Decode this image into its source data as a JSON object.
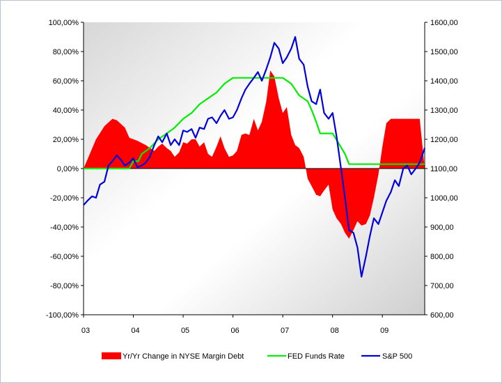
{
  "chart_data": {
    "type": "area",
    "title": "",
    "xlabel": "",
    "ylabel": "",
    "x_categories": [
      "03",
      "04",
      "05",
      "06",
      "07",
      "08",
      "09"
    ],
    "x_range": [
      2003.0,
      2009.85
    ],
    "y_left": {
      "range": [
        -1.0,
        1.0
      ],
      "ticks": [
        1.0,
        0.8,
        0.6,
        0.4,
        0.2,
        0.0,
        -0.2,
        -0.4,
        -0.6,
        -0.8,
        -1.0
      ],
      "tick_labels": [
        "100,00%",
        "80,00%",
        "60,00%",
        "40,00%",
        "20,00%",
        "0,00%",
        "-20,00%",
        "-40,00%",
        "-60,00%",
        "-80,00%",
        "-100,00%"
      ]
    },
    "y_right": {
      "range": [
        600,
        1600
      ],
      "ticks": [
        1600,
        1500,
        1400,
        1300,
        1200,
        1100,
        1000,
        900,
        800,
        700,
        600
      ],
      "tick_labels": [
        "1600,00",
        "1500,00",
        "1400,00",
        "1300,00",
        "1200,00",
        "1100,00",
        "1000,00",
        "900,00",
        "800,00",
        "700,00",
        "600,00"
      ]
    },
    "grid": false,
    "legend_position": "bottom",
    "series": [
      {
        "name": "Yr/Yr Change in NYSE Margin Debt",
        "type": "area",
        "axis": "left",
        "color": "#ff0000",
        "x": [
          2003.0,
          2003.1,
          2003.25,
          2003.42,
          2003.58,
          2003.67,
          2003.83,
          2003.92,
          2004.08,
          2004.25,
          2004.42,
          2004.5,
          2004.58,
          2004.67,
          2004.75,
          2004.83,
          2004.92,
          2005.0,
          2005.08,
          2005.17,
          2005.25,
          2005.33,
          2005.42,
          2005.5,
          2005.58,
          2005.67,
          2005.75,
          2005.83,
          2005.92,
          2006.0,
          2006.08,
          2006.17,
          2006.25,
          2006.33,
          2006.42,
          2006.5,
          2006.58,
          2006.67,
          2006.75,
          2006.83,
          2006.92,
          2007.0,
          2007.08,
          2007.17,
          2007.25,
          2007.33,
          2007.42,
          2007.5,
          2007.58,
          2007.67,
          2007.75,
          2007.83,
          2007.92,
          2008.0,
          2008.08,
          2008.17,
          2008.25,
          2008.33,
          2008.42,
          2008.5,
          2008.58,
          2008.67,
          2008.75,
          2008.83,
          2008.92,
          2009.0,
          2009.08,
          2009.17,
          2009.25,
          2009.33,
          2009.42,
          2009.5,
          2009.58,
          2009.67,
          2009.75,
          2009.85
        ],
        "values": [
          0.0,
          0.08,
          0.2,
          0.29,
          0.34,
          0.33,
          0.28,
          0.21,
          0.19,
          0.16,
          0.12,
          0.15,
          0.17,
          0.14,
          0.12,
          0.08,
          0.11,
          0.18,
          0.17,
          0.2,
          0.2,
          0.15,
          0.18,
          0.1,
          0.08,
          0.15,
          0.22,
          0.14,
          0.08,
          0.09,
          0.12,
          0.23,
          0.24,
          0.23,
          0.34,
          0.26,
          0.32,
          0.46,
          0.67,
          0.63,
          0.48,
          0.38,
          0.42,
          0.23,
          0.16,
          0.14,
          0.08,
          -0.07,
          -0.12,
          -0.18,
          -0.19,
          -0.15,
          -0.11,
          -0.28,
          -0.34,
          -0.38,
          -0.44,
          -0.48,
          -0.42,
          -0.36,
          -0.39,
          -0.38,
          -0.32,
          -0.2,
          -0.04,
          0.15,
          0.31,
          0.34,
          0.34,
          0.34,
          0.34,
          0.34,
          0.34,
          0.34,
          0.34,
          0.0
        ]
      },
      {
        "name": "FED Funds Rate",
        "type": "line",
        "axis": "right",
        "color": "#00ee00",
        "x": [
          2003.0,
          2003.92,
          2004.0,
          2004.1,
          2004.17,
          2004.33,
          2004.5,
          2004.67,
          2004.83,
          2005.0,
          2005.17,
          2005.33,
          2005.5,
          2005.67,
          2005.83,
          2006.0,
          2006.5,
          2007.0,
          2007.17,
          2007.33,
          2007.5,
          2007.58,
          2007.67,
          2007.75,
          2008.0,
          2008.25,
          2008.33,
          2008.5,
          2009.85
        ],
        "values": [
          1100,
          1100,
          1125,
          1125,
          1150,
          1170,
          1200,
          1220,
          1240,
          1270,
          1290,
          1320,
          1340,
          1360,
          1390,
          1410,
          1410,
          1410,
          1390,
          1350,
          1330,
          1300,
          1260,
          1220,
          1220,
          1150,
          1115,
          1115,
          1115
        ]
      },
      {
        "name": "S&P 500",
        "type": "line",
        "axis": "right",
        "color": "#0000dd",
        "x": [
          2003.0,
          2003.08,
          2003.17,
          2003.25,
          2003.33,
          2003.42,
          2003.5,
          2003.58,
          2003.67,
          2003.75,
          2003.83,
          2003.92,
          2004.0,
          2004.08,
          2004.17,
          2004.25,
          2004.33,
          2004.42,
          2004.5,
          2004.58,
          2004.67,
          2004.75,
          2004.83,
          2004.92,
          2005.0,
          2005.08,
          2005.17,
          2005.25,
          2005.33,
          2005.42,
          2005.5,
          2005.58,
          2005.67,
          2005.75,
          2005.83,
          2005.92,
          2006.0,
          2006.08,
          2006.17,
          2006.25,
          2006.33,
          2006.42,
          2006.5,
          2006.58,
          2006.67,
          2006.75,
          2006.83,
          2006.92,
          2007.0,
          2007.08,
          2007.17,
          2007.25,
          2007.33,
          2007.42,
          2007.5,
          2007.58,
          2007.67,
          2007.75,
          2007.83,
          2007.92,
          2008.0,
          2008.08,
          2008.17,
          2008.25,
          2008.33,
          2008.42,
          2008.5,
          2008.58,
          2008.67,
          2008.75,
          2008.83,
          2008.92,
          2009.0,
          2009.08,
          2009.17,
          2009.25,
          2009.33,
          2009.42,
          2009.5,
          2009.58,
          2009.67,
          2009.75,
          2009.85
        ],
        "values": [
          975,
          990,
          1005,
          1000,
          1045,
          1055,
          1110,
          1125,
          1145,
          1130,
          1110,
          1120,
          1135,
          1105,
          1110,
          1120,
          1140,
          1180,
          1210,
          1190,
          1220,
          1180,
          1200,
          1180,
          1230,
          1225,
          1235,
          1205,
          1240,
          1235,
          1270,
          1275,
          1255,
          1280,
          1300,
          1270,
          1275,
          1300,
          1340,
          1370,
          1390,
          1410,
          1430,
          1400,
          1440,
          1480,
          1530,
          1510,
          1460,
          1480,
          1510,
          1550,
          1475,
          1455,
          1380,
          1330,
          1320,
          1370,
          1290,
          1270,
          1290,
          1210,
          1100,
          1000,
          890,
          880,
          830,
          730,
          800,
          870,
          930,
          910,
          950,
          990,
          1020,
          1060,
          1040,
          1100,
          1110,
          1080,
          1100,
          1120,
          1170
        ]
      }
    ]
  }
}
